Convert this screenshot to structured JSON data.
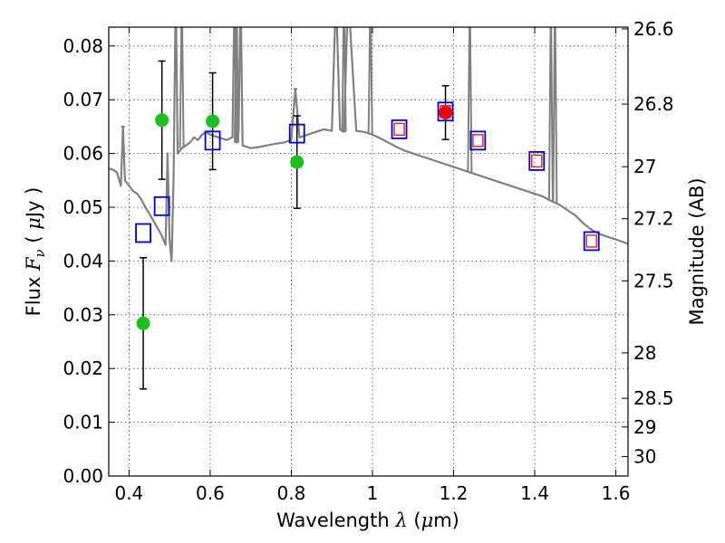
{
  "chart_data": {
    "type": "scatter",
    "xlabel_prefix": "Wavelength",
    "xlabel_symbol": "λ",
    "xlabel_unit_open": " (",
    "xlabel_unit_symbol": "μ",
    "xlabel_unit_rest": "m)",
    "ylabel_prefix": "Flux",
    "ylabel_symbol": "F",
    "ylabel_sub": "ν",
    "ylabel_unit_open": " ( ",
    "ylabel_unit_symbol": "μ",
    "ylabel_unit_rest": "Jy )",
    "y2label": "Magnitude (AB)",
    "xlim": [
      0.35,
      1.63
    ],
    "ylim": [
      0.0,
      0.0835
    ],
    "x_ticks": [
      0.4,
      0.6,
      0.8,
      1.0,
      1.2,
      1.4,
      1.6
    ],
    "x_tick_labels": [
      "0.4",
      "0.6",
      "0.8",
      "1",
      "1.2",
      "1.4",
      "1.6"
    ],
    "y_ticks": [
      0.0,
      0.01,
      0.02,
      0.03,
      0.04,
      0.05,
      0.06,
      0.07,
      0.08
    ],
    "y_tick_labels": [
      "0.00",
      "0.01",
      "0.02",
      "0.03",
      "0.04",
      "0.05",
      "0.06",
      "0.07",
      "0.08"
    ],
    "y2_ticks": [
      26.6,
      26.8,
      27.0,
      27.2,
      27.5,
      28.0,
      28.5,
      29.0,
      30.0
    ],
    "y2_tick_labels": [
      "26.6",
      "26.8",
      "27",
      "27.2",
      "27.5",
      "28",
      "28.5",
      "29",
      "30"
    ],
    "grid": true,
    "colors": {
      "model": "#808080",
      "observed": "#1fbf1f",
      "red_point": "#ee0000",
      "model_box_outer": "#0000cc",
      "model_box_inner": "#dd2222",
      "errorbar": "#000000"
    },
    "model_spectrum": {
      "x": [
        0.35,
        0.36,
        0.37,
        0.38,
        0.385,
        0.39,
        0.395,
        0.4,
        0.41,
        0.42,
        0.43,
        0.44,
        0.45,
        0.46,
        0.47,
        0.48,
        0.49,
        0.495,
        0.5,
        0.505,
        0.51,
        0.515,
        0.52,
        0.53,
        0.54,
        0.55,
        0.56,
        0.57,
        0.58,
        0.59,
        0.6,
        0.62,
        0.64,
        0.655,
        0.66,
        0.665,
        0.67,
        0.675,
        0.68,
        0.7,
        0.72,
        0.74,
        0.76,
        0.78,
        0.8,
        0.81,
        0.82,
        0.84,
        0.86,
        0.88,
        0.9,
        0.91,
        0.92,
        0.93,
        0.94,
        0.96,
        0.98,
        1.0,
        1.02,
        1.04,
        1.06,
        1.08,
        1.1,
        1.12,
        1.14,
        1.16,
        1.18,
        1.2,
        1.22,
        1.24,
        1.26,
        1.28,
        1.3,
        1.32,
        1.34,
        1.36,
        1.38,
        1.4,
        1.42,
        1.44,
        1.46,
        1.48,
        1.5,
        1.52,
        1.54,
        1.56,
        1.58,
        1.6,
        1.63
      ],
      "y": [
        0.0572,
        0.057,
        0.0565,
        0.054,
        0.065,
        0.055,
        0.0545,
        0.054,
        0.053,
        0.0525,
        0.0515,
        0.05,
        0.0488,
        0.0475,
        0.0462,
        0.0448,
        0.043,
        0.06,
        0.044,
        0.04,
        0.056,
        0.09,
        0.06,
        0.061,
        0.0615,
        0.062,
        0.063,
        0.0625,
        0.0635,
        0.064,
        0.0635,
        0.063,
        0.0625,
        0.063,
        0.09,
        0.062,
        0.064,
        0.09,
        0.0615,
        0.061,
        0.0612,
        0.0615,
        0.0618,
        0.062,
        0.0625,
        0.072,
        0.063,
        0.0635,
        0.064,
        0.0645,
        0.0642,
        0.09,
        0.0645,
        0.064,
        0.09,
        0.0642,
        0.064,
        0.0635,
        0.0628,
        0.062,
        0.0612,
        0.0605,
        0.06,
        0.0595,
        0.059,
        0.0585,
        0.058,
        0.0575,
        0.057,
        0.0565,
        0.056,
        0.0555,
        0.055,
        0.0545,
        0.054,
        0.0535,
        0.053,
        0.0525,
        0.052,
        0.0512,
        0.0505,
        0.0495,
        0.0485,
        0.047,
        0.0458,
        0.045,
        0.0445,
        0.044,
        0.0432
      ],
      "spikes": [
        {
          "x": 0.385,
          "y": 0.065
        },
        {
          "x": 0.515,
          "y": 0.09
        },
        {
          "x": 0.53,
          "y": 0.09
        },
        {
          "x": 0.665,
          "y": 0.09
        },
        {
          "x": 0.675,
          "y": 0.09
        },
        {
          "x": 0.81,
          "y": 0.072
        },
        {
          "x": 0.91,
          "y": 0.09
        },
        {
          "x": 0.93,
          "y": 0.09
        },
        {
          "x": 0.995,
          "y": 0.09
        },
        {
          "x": 1.24,
          "y": 0.09
        },
        {
          "x": 1.44,
          "y": 0.09
        },
        {
          "x": 1.45,
          "y": 0.09
        }
      ]
    },
    "observed": [
      {
        "x": 0.435,
        "y": 0.0284,
        "yerr": 0.0122
      },
      {
        "x": 0.481,
        "y": 0.0662,
        "yerr": 0.011
      },
      {
        "x": 0.606,
        "y": 0.066,
        "yerr": 0.009
      },
      {
        "x": 0.814,
        "y": 0.0584,
        "yerr": 0.0086
      }
    ],
    "red_point": {
      "x": 1.18,
      "y": 0.0676,
      "yerr": 0.005
    },
    "model_photometry": [
      {
        "x": 0.435,
        "y": 0.0452,
        "inner": false
      },
      {
        "x": 0.481,
        "y": 0.0502,
        "inner": false
      },
      {
        "x": 0.606,
        "y": 0.0624,
        "inner": false
      },
      {
        "x": 0.814,
        "y": 0.0637,
        "inner": false
      },
      {
        "x": 1.066,
        "y": 0.0645,
        "inner": true
      },
      {
        "x": 1.18,
        "y": 0.0678,
        "inner": true
      },
      {
        "x": 1.26,
        "y": 0.0624,
        "inner": true
      },
      {
        "x": 1.405,
        "y": 0.0586,
        "inner": true
      },
      {
        "x": 1.54,
        "y": 0.0437,
        "inner": true
      }
    ]
  }
}
